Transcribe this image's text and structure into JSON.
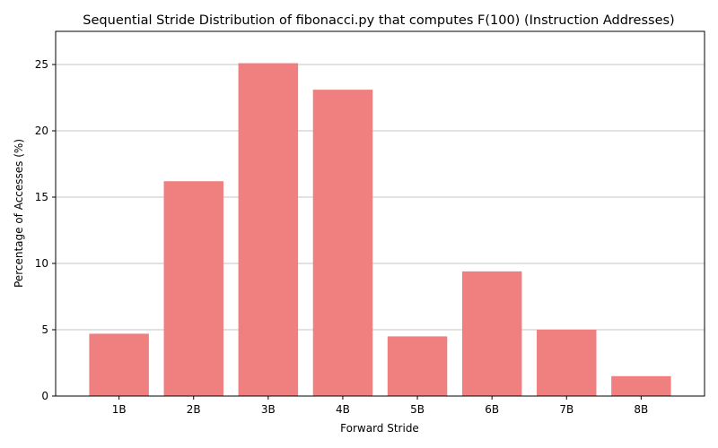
{
  "chart_data": {
    "type": "bar",
    "title": "Sequential Stride Distribution of fibonacci.py that computes F(100) (Instruction Addresses)",
    "xlabel": "Forward Stride",
    "ylabel": "Percentage of Accesses (%)",
    "categories": [
      "1B",
      "2B",
      "3B",
      "4B",
      "5B",
      "6B",
      "7B",
      "8B"
    ],
    "values": [
      4.7,
      16.2,
      25.1,
      23.1,
      4.5,
      9.4,
      5.0,
      1.5
    ],
    "ylim": [
      0,
      27.5
    ],
    "yticks": [
      0,
      5,
      10,
      15,
      20,
      25
    ],
    "grid": "y",
    "bar_color": "#f08080",
    "grid_color": "#b0b0b0"
  }
}
